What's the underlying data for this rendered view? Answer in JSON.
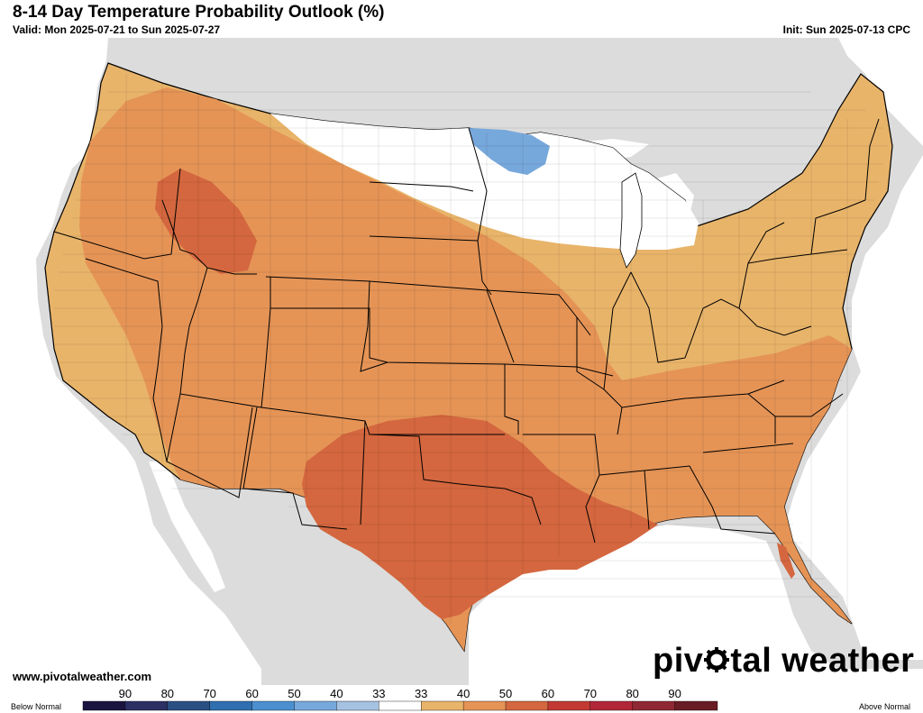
{
  "header": {
    "title": "8-14 Day Temperature Probability Outlook (%)",
    "valid": "Valid: Mon 2025-07-21 to Sun 2025-07-27",
    "init": "Init: Sun 2025-07-13 CPC"
  },
  "footer": {
    "website": "www.pivotalweather.com",
    "brand_before": "piv",
    "brand_after": "tal weather"
  },
  "legend": {
    "below_label": "Below Normal",
    "above_label": "Above Normal",
    "below_values": [
      "90",
      "80",
      "70",
      "60",
      "50",
      "40",
      "33"
    ],
    "above_values": [
      "33",
      "40",
      "50",
      "60",
      "70",
      "80",
      "90"
    ],
    "below_colors": [
      "#1a1540",
      "#2b2f63",
      "#294f83",
      "#2f6fb0",
      "#4c8fcf",
      "#77a8dc",
      "#a6c2e3"
    ],
    "neutral_color": "#ffffff",
    "above_colors": [
      "#e8b46a",
      "#e59456",
      "#d4673f",
      "#c23a33",
      "#b12738",
      "#8f2833",
      "#6a1c25"
    ]
  },
  "map": {
    "land_color": "#dcdcdc",
    "ocean_color": "#ffffff",
    "regions": [
      {
        "name": "near-normal-north",
        "category": "Near Normal"
      },
      {
        "name": "below-normal-minnesota",
        "category": "Below Normal",
        "probability": 40
      },
      {
        "name": "above-normal-40",
        "category": "Above Normal",
        "probability": 40
      },
      {
        "name": "above-normal-50",
        "category": "Above Normal",
        "probability": 50
      },
      {
        "name": "above-normal-60-idaho",
        "category": "Above Normal",
        "probability": 60
      },
      {
        "name": "above-normal-60-texas-gulf",
        "category": "Above Normal",
        "probability": 60
      }
    ]
  }
}
